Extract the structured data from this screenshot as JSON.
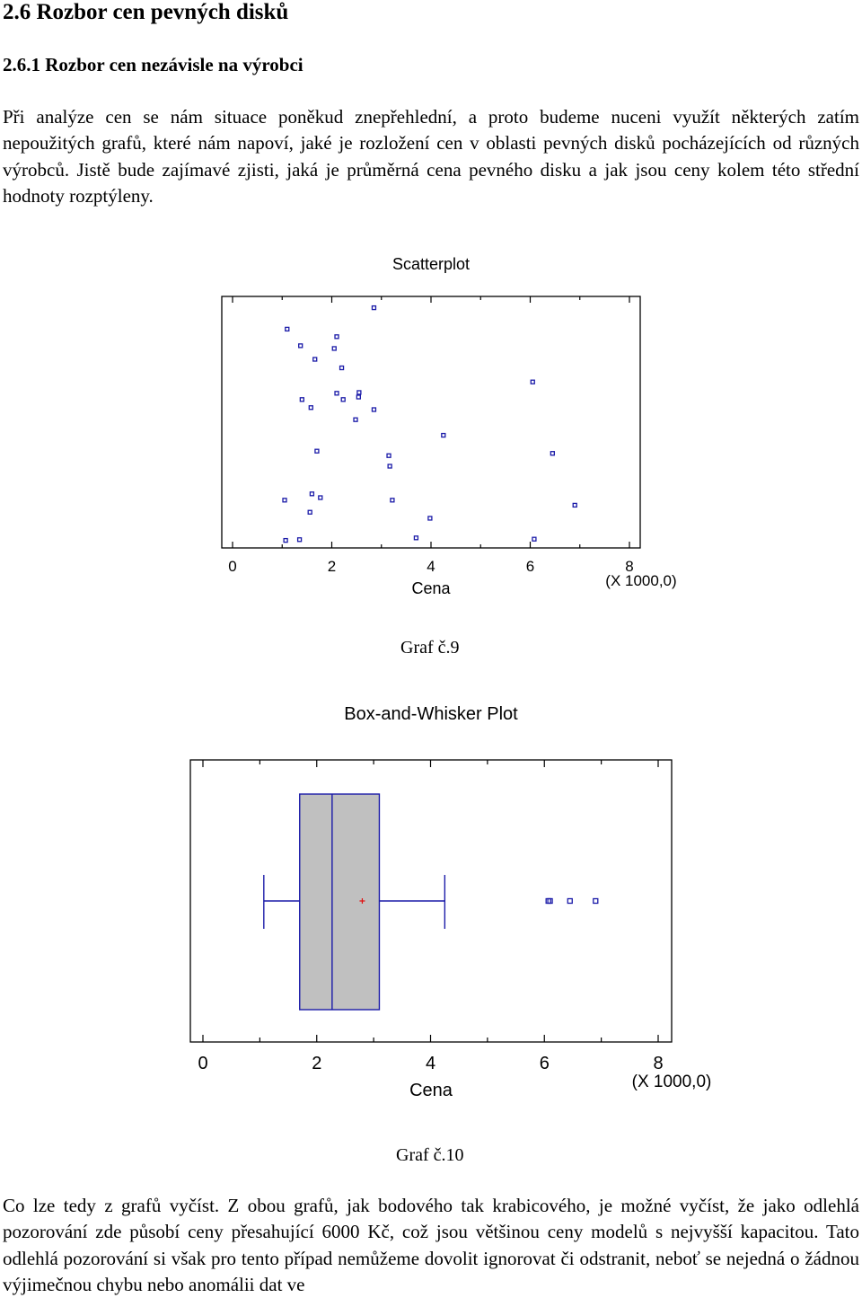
{
  "section_heading": "2.6 Rozbor cen pevných disků",
  "subsection_heading": "2.6.1 Rozbor cen nezávisle na výrobci",
  "intro_paragraph": "Při analýze cen se nám situace poněkud znepřehlední, a proto budeme nuceni využít některých zatím nepoužitých grafů, které nám napoví, jaké je rozložení cen v oblasti pevných disků pocházejících od různých výrobců. Jistě bude zajímavé zjisti, jaká je průměrná cena pevného disku a jak jsou ceny kolem této střední hodnoty rozptýleny.",
  "caption_graph9": "Graf č.9",
  "caption_graph10": "Graf č.10",
  "conclusion_paragraph": "Co lze tedy z grafů vyčíst. Z obou grafů, jak bodového tak krabicového, je možné vyčíst, že jako odlehlá pozorování zde působí ceny přesahující 6000 Kč, což jsou většinou ceny modelů s nejvyšší kapacitou. Tato odlehlá pozorování si však pro tento případ nemůžeme dovolit ignorovat či odstranit, neboť se nejedná o žádnou výjimečnou chybu nebo anomálii dat ve",
  "colors": {
    "marker": "#1a1aa8",
    "box_fill": "#c0c0c0",
    "box_edge": "#1a1aa8",
    "mean_marker": "#e01010"
  },
  "chart_data": [
    {
      "type": "scatter",
      "title": "Scatterplot",
      "xlabel": "Cena",
      "x_multiplier_label": "(X 1000,0)",
      "xlim": [
        0,
        8
      ],
      "xticks": [
        "0",
        "2",
        "4",
        "6",
        "8"
      ],
      "grid": false,
      "points": [
        {
          "x": 2.85,
          "y": 0.955
        },
        {
          "x": 1.1,
          "y": 0.87
        },
        {
          "x": 2.1,
          "y": 0.84
        },
        {
          "x": 1.37,
          "y": 0.804
        },
        {
          "x": 2.05,
          "y": 0.793
        },
        {
          "x": 1.66,
          "y": 0.75
        },
        {
          "x": 2.2,
          "y": 0.716
        },
        {
          "x": 6.05,
          "y": 0.66
        },
        {
          "x": 2.1,
          "y": 0.615
        },
        {
          "x": 2.55,
          "y": 0.618
        },
        {
          "x": 2.54,
          "y": 0.6
        },
        {
          "x": 1.4,
          "y": 0.59
        },
        {
          "x": 2.23,
          "y": 0.59
        },
        {
          "x": 1.58,
          "y": 0.558
        },
        {
          "x": 2.85,
          "y": 0.55
        },
        {
          "x": 2.48,
          "y": 0.51
        },
        {
          "x": 4.25,
          "y": 0.448
        },
        {
          "x": 1.7,
          "y": 0.385
        },
        {
          "x": 6.45,
          "y": 0.376
        },
        {
          "x": 3.15,
          "y": 0.367
        },
        {
          "x": 3.17,
          "y": 0.325
        },
        {
          "x": 1.6,
          "y": 0.215
        },
        {
          "x": 1.77,
          "y": 0.2
        },
        {
          "x": 1.05,
          "y": 0.19
        },
        {
          "x": 3.22,
          "y": 0.19
        },
        {
          "x": 6.9,
          "y": 0.17
        },
        {
          "x": 1.56,
          "y": 0.142
        },
        {
          "x": 3.98,
          "y": 0.118
        },
        {
          "x": 3.7,
          "y": 0.04
        },
        {
          "x": 1.07,
          "y": 0.03
        },
        {
          "x": 1.35,
          "y": 0.033
        },
        {
          "x": 6.08,
          "y": 0.035
        }
      ]
    },
    {
      "type": "box",
      "title": "Box-and-Whisker Plot",
      "xlabel": "Cena",
      "x_multiplier_label": "(X 1000,0)",
      "xlim": [
        0,
        8
      ],
      "xticks": [
        "0",
        "2",
        "4",
        "6",
        "8"
      ],
      "whisker_low": 1.07,
      "q1": 1.7,
      "median": 2.27,
      "mean": 2.8,
      "q3": 3.1,
      "whisker_high": 4.25,
      "outliers": [
        6.07,
        6.1,
        6.45,
        6.9
      ]
    }
  ]
}
